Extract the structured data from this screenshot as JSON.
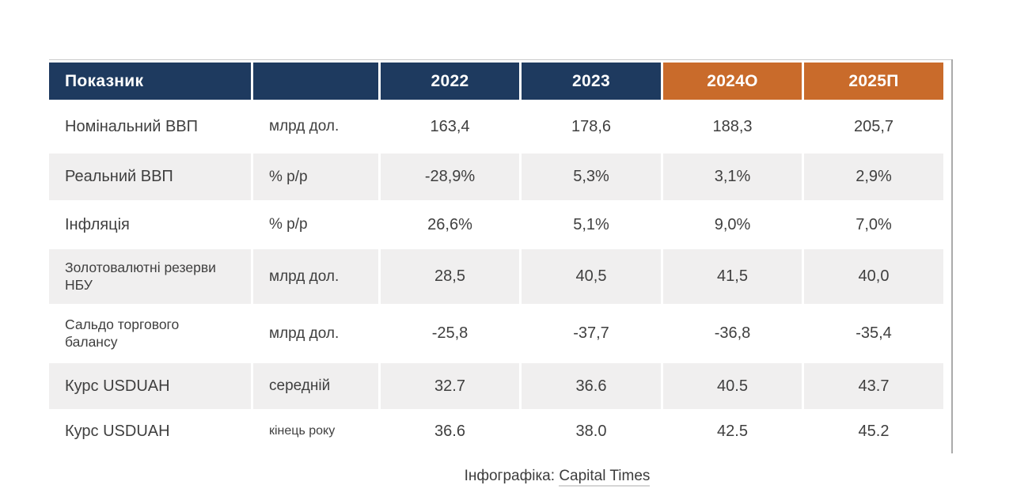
{
  "chart_data": {
    "type": "table",
    "columns": [
      "Показник",
      "",
      "2022",
      "2023",
      "2024О",
      "2025П"
    ],
    "rows": [
      {
        "indicator": "Номінальний ВВП",
        "unit": "млрд дол.",
        "values": [
          "163,4",
          "178,6",
          "188,3",
          "205,7"
        ]
      },
      {
        "indicator": "Реальний ВВП",
        "unit": "% р/р",
        "values": [
          "-28,9%",
          "5,3%",
          "3,1%",
          "2,9%"
        ]
      },
      {
        "indicator": "Інфляція",
        "unit": "% р/р",
        "values": [
          "26,6%",
          "5,1%",
          "9,0%",
          "7,0%"
        ]
      },
      {
        "indicator": "Золотовалютні резерви НБУ",
        "unit": "млрд дол.",
        "values": [
          "28,5",
          "40,5",
          "41,5",
          "40,0"
        ]
      },
      {
        "indicator": "Сальдо торгового балансу",
        "unit": "млрд дол.",
        "values": [
          "-25,8",
          "-37,7",
          "-36,8",
          "-35,4"
        ]
      },
      {
        "indicator": "Курс USDUAH",
        "unit": "середній",
        "values": [
          "32.7",
          "36.6",
          "40.5",
          "43.7"
        ]
      },
      {
        "indicator": "Курс USDUAH",
        "unit": "кінець року",
        "values": [
          "36.6",
          "38.0",
          "42.5",
          "45.2"
        ]
      }
    ]
  },
  "header": {
    "cells": [
      {
        "label": "Показник",
        "color": "#1e3a5f"
      },
      {
        "label": "",
        "color": "#1e3a5f"
      },
      {
        "label": "2022",
        "color": "#1e3a5f"
      },
      {
        "label": "2023",
        "color": "#1e3a5f"
      },
      {
        "label": "2024О",
        "color": "#c96b2b"
      },
      {
        "label": "2025П",
        "color": "#c96b2b"
      }
    ]
  },
  "footer": {
    "prefix": "Інфографіка: ",
    "source": "Capital Times"
  },
  "colors": {
    "navy": "#1e3a5f",
    "orange": "#c96b2b",
    "row_alt": "#f0efef",
    "text": "#3f3f3f"
  }
}
